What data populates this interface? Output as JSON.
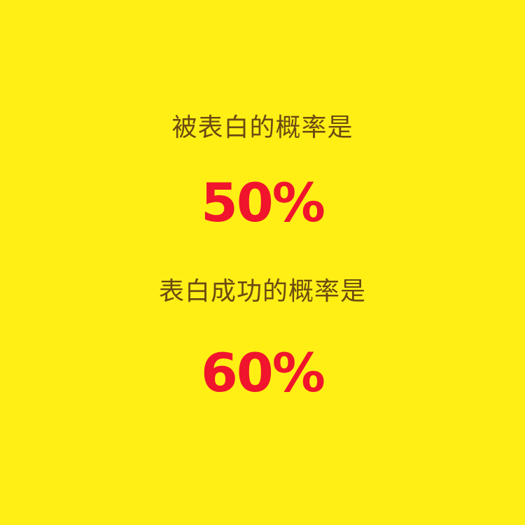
{
  "colors": {
    "background": "#ffef15",
    "label_text": "#6b4a12",
    "percent_text": "#f0142c"
  },
  "first": {
    "label": "被表白的概率是",
    "value": "50%"
  },
  "second": {
    "label": "表白成功的概率是",
    "value": "60%"
  }
}
